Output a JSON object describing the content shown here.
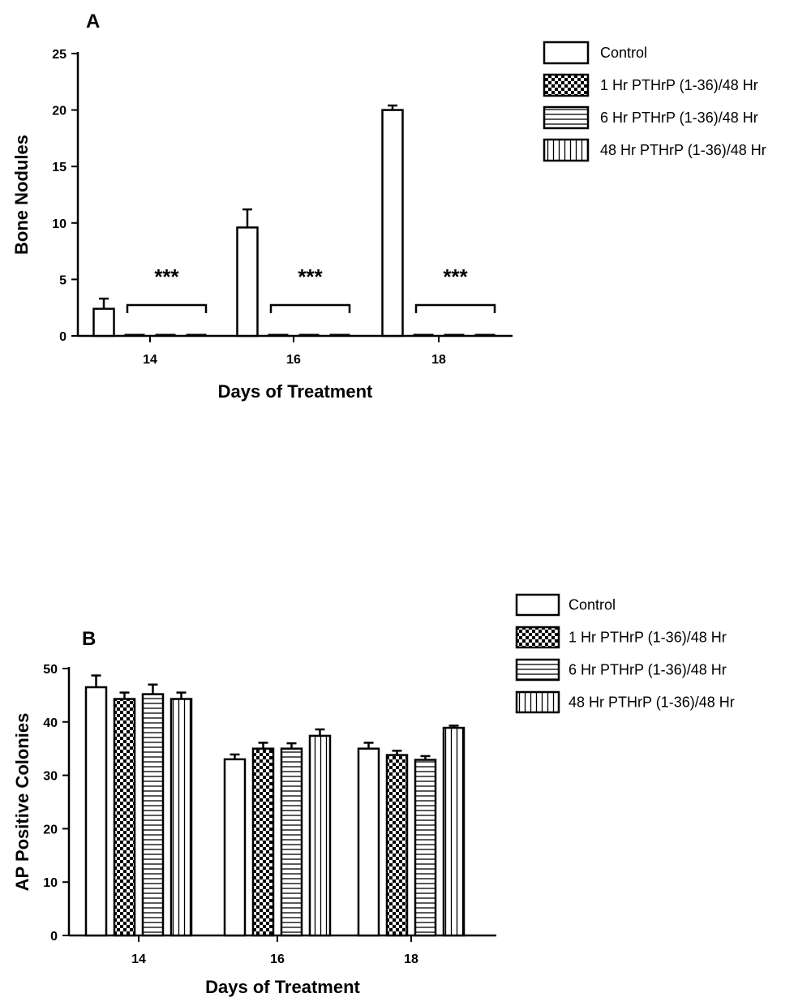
{
  "chart_data": [
    {
      "type": "bar",
      "panel": "A",
      "categories": [
        "14",
        "16",
        "18"
      ],
      "xlabel": "Days of Treatment",
      "ylabel": "Bone Nodules",
      "ylim": [
        0,
        25
      ],
      "yticks": [
        0,
        5,
        10,
        15,
        20,
        25
      ],
      "series": [
        {
          "name": "Control",
          "values": [
            2.4,
            9.6,
            20.0
          ],
          "errors": [
            0.9,
            1.6,
            0.4
          ],
          "pattern": "open"
        },
        {
          "name": "1 Hr PTHrP (1-36)/48 Hr",
          "values": [
            0,
            0,
            0
          ],
          "errors": [
            0,
            0,
            0
          ],
          "pattern": "checker"
        },
        {
          "name": "6 Hr PTHrP (1-36)/48 Hr",
          "values": [
            0,
            0,
            0
          ],
          "errors": [
            0,
            0,
            0
          ],
          "pattern": "horizontal"
        },
        {
          "name": "48 Hr PTHrP (1-36)/48 Hr",
          "values": [
            0,
            0,
            0
          ],
          "errors": [
            0,
            0,
            0
          ],
          "pattern": "vertical"
        }
      ],
      "annotations": [
        "***",
        "***",
        "***"
      ],
      "grid": false,
      "legend": "right"
    },
    {
      "type": "bar",
      "panel": "B",
      "categories": [
        "14",
        "16",
        "18"
      ],
      "xlabel": "Days of Treatment",
      "ylabel": "AP Positive Colonies",
      "ylim": [
        0,
        50
      ],
      "yticks": [
        0,
        10,
        20,
        30,
        40,
        50
      ],
      "series": [
        {
          "name": "Control",
          "values": [
            46.5,
            33.0,
            35.0
          ],
          "errors": [
            2.2,
            0.9,
            1.1
          ],
          "pattern": "open"
        },
        {
          "name": "1 Hr PTHrP (1-36)/48 Hr",
          "values": [
            44.3,
            35.0,
            33.8
          ],
          "errors": [
            1.2,
            1.1,
            0.8
          ],
          "pattern": "checker"
        },
        {
          "name": "6 Hr PTHrP (1-36)/48 Hr",
          "values": [
            45.2,
            35.0,
            32.9
          ],
          "errors": [
            1.8,
            1.0,
            0.7
          ],
          "pattern": "horizontal"
        },
        {
          "name": "48 Hr PTHrP (1-36)/48 Hr",
          "values": [
            44.3,
            37.4,
            38.9
          ],
          "errors": [
            1.2,
            1.2,
            0.4
          ],
          "pattern": "vertical"
        }
      ],
      "grid": false,
      "legend": "right"
    }
  ]
}
